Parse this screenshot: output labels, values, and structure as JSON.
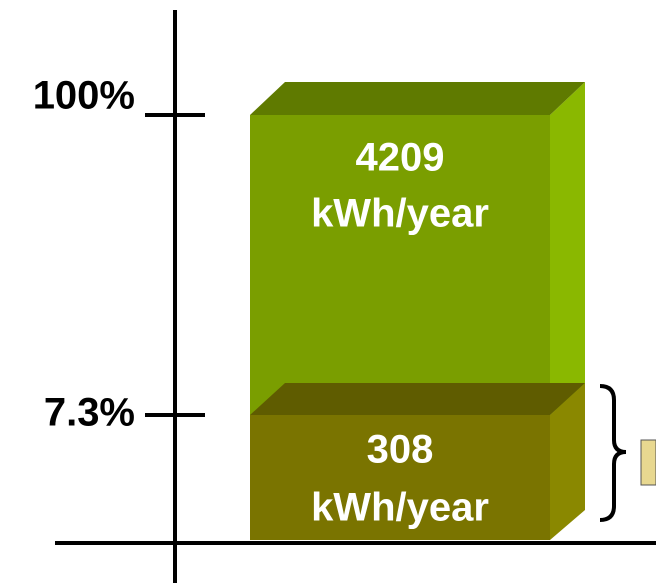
{
  "axis": {
    "ticks": [
      "100%",
      "7.3%"
    ]
  },
  "boxes": [
    {
      "value": "4209",
      "unit": "kWh/year"
    },
    {
      "value": "308",
      "unit": "kWh/year"
    }
  ]
}
